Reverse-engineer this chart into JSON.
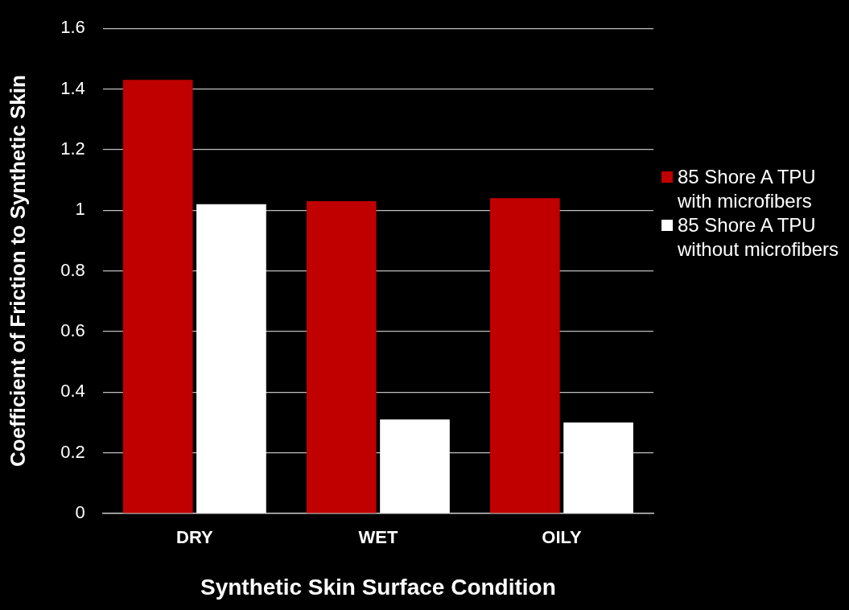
{
  "chart_data": {
    "type": "bar",
    "xlabel": "Synthetic Skin Surface Condition",
    "ylabel": "Coefficient of Friction to Synthetic Skin",
    "categories": [
      "DRY",
      "WET",
      "OILY"
    ],
    "series": [
      {
        "name": "85 Shore A TPU with microfibers",
        "color": "#c00000",
        "values": [
          1.43,
          1.03,
          1.04
        ]
      },
      {
        "name": "85 Shore A TPU without microfibers",
        "color": "#ffffff",
        "values": [
          1.02,
          0.31,
          0.3
        ]
      }
    ],
    "ylim": [
      0,
      1.6
    ],
    "yticks": [
      0,
      0.2,
      0.4,
      0.6,
      0.8,
      1,
      1.2,
      1.4,
      1.6
    ],
    "grid": "y",
    "legend": "right"
  }
}
